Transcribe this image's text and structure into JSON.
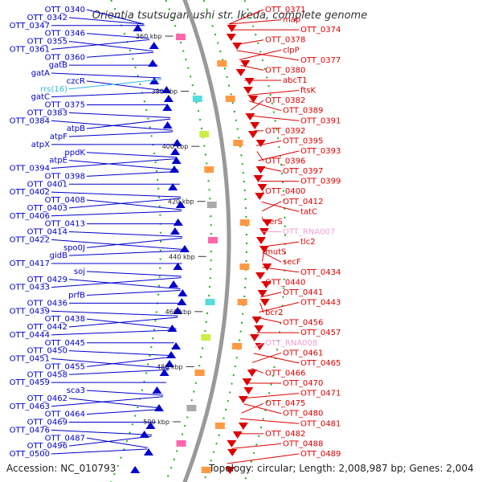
{
  "title": "Orientia tsutsugamushi str. Ikeda, complete genome",
  "footer": {
    "accession": "Accession: NC_010793",
    "topology": "Topology: circular; Length: 2,008,987 bp; Genes: 2,004"
  },
  "colors": {
    "minus_strand": "#0000cc",
    "plus_strand": "#dd0000",
    "rna_label": "#f0a0d0",
    "rrs_label": "#33bbdd",
    "backbone": "#999999",
    "dotted_ring": "#22aa22"
  },
  "ticks": [
    "360 kbp",
    "380 kbp",
    "400 kbp",
    "420 kbp",
    "440 kbp",
    "460 kbp",
    "480 kbp",
    "500 kbp"
  ],
  "left_labels": [
    "OTT_0340",
    "OTT_0342",
    "OTT_0347",
    "OTT_0346",
    "OTT_0355",
    "OTT_0361",
    "OTT_0360",
    "gatB",
    "gatA",
    "czcR",
    "rrs(16)",
    "gatC",
    "OTT_0375",
    "OTT_0383",
    "OTT_0384",
    "atpB",
    "atpF",
    "atpX",
    "ppdK",
    "atpE",
    "OTT_0394",
    "OTT_0398",
    "OTT_0401",
    "OTT_0402",
    "OTT_0408",
    "OTT_0403",
    "OTT_0406",
    "OTT_0413",
    "OTT_0414",
    "OTT_0422",
    "spo0J",
    "gidB",
    "OTT_0417",
    "soj",
    "OTT_0429",
    "OTT_0433",
    "prfB",
    "OTT_0436",
    "OTT_0439",
    "OTT_0438",
    "OTT_0442",
    "OTT_0444",
    "OTT_0445",
    "OTT_0450",
    "OTT_0451",
    "OTT_0455",
    "OTT_0458",
    "OTT_0459",
    "sca3",
    "OTT_0462",
    "OTT_0463",
    "OTT_0464",
    "OTT_0469",
    "OTT_0476",
    "OTT_0487",
    "OTT_0496",
    "OTT_0500"
  ],
  "right_labels": [
    "OTT_0371",
    "map",
    "OTT_0374",
    "OTT_0378",
    "clpP",
    "OTT_0377",
    "OTT_0380",
    "abcT1",
    "ftsK",
    "OTT_0382",
    "OTT_0389",
    "OTT_0391",
    "OTT_0392",
    "OTT_0395",
    "OTT_0393",
    "OTT_0396",
    "OTT_0397",
    "OTT_0399",
    "OTT_0400",
    "OTT_0412",
    "tatC",
    "serS",
    "OTT_RNA007",
    "tlc2",
    "mutS",
    "secF",
    "OTT_0434",
    "OTT_0440",
    "OTT_0441",
    "OTT_0443",
    "bcr2",
    "OTT_0456",
    "OTT_0457",
    "OTT_RNA008",
    "OTT_0461",
    "OTT_0465",
    "OTT_0466",
    "OTT_0470",
    "OTT_0471",
    "OTT_0475",
    "OTT_0480",
    "OTT_0481",
    "OTT_0482",
    "OTT_0488",
    "OTT_0489"
  ]
}
